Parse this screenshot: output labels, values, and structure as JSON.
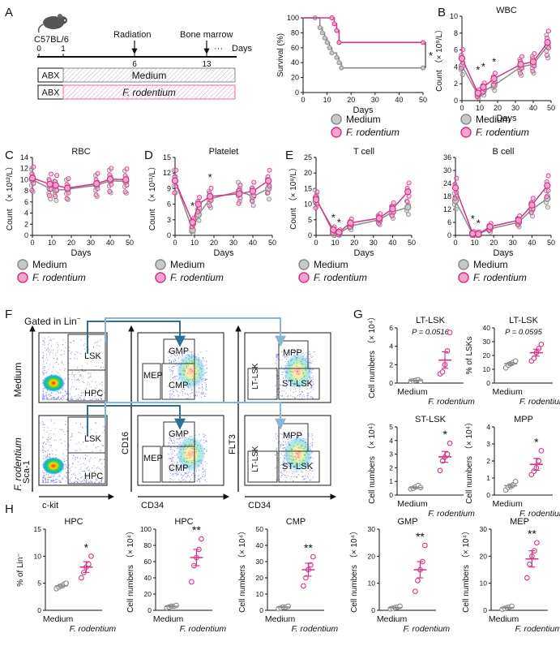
{
  "colors": {
    "medium_fill": "#c9c9c9",
    "medium_stroke": "#8a8a8a",
    "rodentium": "#d6318a",
    "rodentium_fill": "#f0a6cc",
    "arrow_dark": "#2b6f9a",
    "arrow_light": "#8ab6d6",
    "hatch_pink": "#e86aa8"
  },
  "legend": {
    "medium": "Medium",
    "rodentium": "F. rodentium"
  },
  "panel_letters": [
    "A",
    "B",
    "C",
    "D",
    "E",
    "F",
    "G",
    "H"
  ],
  "schematic": {
    "mouse_label": "C57BL/6",
    "event_radiation": "Radiation",
    "event_bone_marrow": "Bone marrow",
    "ticks": [
      "0",
      "1",
      "6",
      "13"
    ],
    "ellipsis": "···",
    "unit": "Days",
    "row1_pre": "ABX",
    "row1_label": "Medium",
    "row2_pre": "ABX",
    "row2_label": "F. rodentium"
  },
  "flow": {
    "gated_label": "Gated in Lin",
    "gated_sup": "−",
    "row_medium": "Medium",
    "row_rodentium": "F. rodentium",
    "plot1_gates": [
      "LSK",
      "HPC"
    ],
    "plot2_gates": [
      "GMP",
      "MEP",
      "CMP"
    ],
    "plot3_gates": [
      "MPP",
      "LT-LSK",
      "ST-LSK"
    ],
    "axis_y": [
      "Sca-1",
      "CD16",
      "FLT3"
    ],
    "axis_x": [
      "c-kit",
      "CD34",
      "CD34"
    ]
  },
  "chart_data": [
    {
      "id": "survival",
      "type": "line",
      "title": "",
      "xlabel": "Days",
      "ylabel": "Survival (%)",
      "xlim": [
        0,
        50
      ],
      "ylim": [
        0,
        100
      ],
      "xticks": [
        0,
        10,
        20,
        30,
        40,
        50
      ],
      "yticks": [
        0,
        20,
        40,
        60,
        80,
        100
      ],
      "annotations": [
        "*"
      ],
      "series": [
        {
          "name": "Medium",
          "x": [
            0,
            5,
            7,
            8,
            9,
            10,
            11,
            12,
            14,
            15,
            16,
            50
          ],
          "y": [
            100,
            100,
            87,
            80,
            73,
            67,
            60,
            53,
            47,
            40,
            33,
            33
          ]
        },
        {
          "name": "F. rodentium",
          "x": [
            0,
            12,
            13,
            14,
            15,
            50
          ],
          "y": [
            100,
            100,
            92,
            83,
            67,
            67
          ]
        }
      ]
    },
    {
      "id": "wbc",
      "type": "line",
      "title": "WBC",
      "xlabel": "Days",
      "ylabel": "Count （× 10⁹/L）",
      "xlim": [
        0,
        50
      ],
      "ylim": [
        0,
        10
      ],
      "xticks": [
        0,
        10,
        20,
        30,
        40,
        50
      ],
      "yticks": [
        0,
        2,
        4,
        6,
        8,
        10
      ],
      "x": [
        0,
        9,
        12,
        18,
        33,
        40,
        48
      ],
      "annotations": [
        "*",
        "*",
        "*"
      ],
      "series": [
        {
          "name": "Medium",
          "values": [
            4.1,
            0.7,
            1.1,
            1.8,
            4.0,
            4.3,
            6.5
          ]
        },
        {
          "name": "F. rodentium",
          "values": [
            5.0,
            0.9,
            1.6,
            2.6,
            4.3,
            4.6,
            6.9
          ]
        }
      ]
    },
    {
      "id": "rbc",
      "type": "line",
      "title": "RBC",
      "xlabel": "Days",
      "ylabel": "Count （× 10¹²/L）",
      "xlim": [
        0,
        50
      ],
      "ylim": [
        0,
        14
      ],
      "xticks": [
        0,
        10,
        20,
        30,
        40,
        50
      ],
      "yticks": [
        0,
        2,
        4,
        6,
        8,
        10,
        12,
        14
      ],
      "x": [
        0,
        9,
        12,
        18,
        33,
        40,
        48
      ],
      "series": [
        {
          "name": "Medium",
          "values": [
            10.0,
            8.4,
            8.1,
            8.3,
            9.0,
            9.8,
            9.7
          ]
        },
        {
          "name": "F. rodentium",
          "values": [
            10.3,
            9.2,
            9.0,
            8.5,
            9.3,
            10.1,
            10.0
          ]
        }
      ]
    },
    {
      "id": "platelet",
      "type": "line",
      "title": "Platelet",
      "xlabel": "Days",
      "ylabel": "Count （× 10¹¹/L）",
      "xlim": [
        0,
        50
      ],
      "ylim": [
        0,
        15
      ],
      "xticks": [
        0,
        10,
        20,
        30,
        40,
        50
      ],
      "yticks": [
        0,
        3,
        6,
        9,
        12,
        15
      ],
      "x": [
        0,
        9,
        12,
        18,
        33,
        40,
        48
      ],
      "annotations": [
        "*",
        "*"
      ],
      "series": [
        {
          "name": "Medium",
          "values": [
            10.5,
            1.0,
            4.0,
            7.0,
            8.5,
            7.5,
            9.0
          ]
        },
        {
          "name": "F. rodentium",
          "values": [
            10.5,
            2.5,
            6.0,
            7.5,
            8.0,
            8.5,
            10.5
          ]
        }
      ]
    },
    {
      "id": "tcell",
      "type": "line",
      "title": "T cell",
      "xlabel": "Days",
      "ylabel": "Count （× 10⁸/L）",
      "xlim": [
        0,
        50
      ],
      "ylim": [
        0,
        25
      ],
      "xticks": [
        0,
        10,
        20,
        30,
        40,
        50
      ],
      "yticks": [
        0,
        5,
        10,
        15,
        20,
        25
      ],
      "x": [
        0,
        9,
        12,
        18,
        33,
        40,
        48
      ],
      "annotations": [
        "*",
        "*"
      ],
      "series": [
        {
          "name": "Medium",
          "values": [
            12.0,
            0.8,
            0.6,
            3.0,
            5.0,
            7.5,
            9.0
          ]
        },
        {
          "name": "F. rodentium",
          "values": [
            11.5,
            1.8,
            1.0,
            4.0,
            5.5,
            8.5,
            14.0
          ]
        }
      ]
    },
    {
      "id": "bcell",
      "type": "line",
      "title": "B cell",
      "xlabel": "Days",
      "ylabel": "",
      "xlim": [
        0,
        50
      ],
      "ylim": [
        0,
        36
      ],
      "xticks": [
        0,
        10,
        20,
        30,
        40,
        50
      ],
      "yticks": [
        0,
        6,
        12,
        18,
        24,
        30,
        36
      ],
      "x": [
        0,
        9,
        12,
        18,
        33,
        40,
        48
      ],
      "annotations": [
        "*",
        "*"
      ],
      "series": [
        {
          "name": "Medium",
          "values": [
            16.0,
            0.5,
            0.5,
            3.0,
            6.0,
            12.0,
            17.0
          ]
        },
        {
          "name": "F. rodentium",
          "values": [
            22.0,
            0.8,
            0.6,
            4.0,
            7.0,
            14.0,
            23.0
          ]
        }
      ]
    },
    {
      "id": "g_ltlsk_n",
      "type": "scatter",
      "title": "LT-LSK",
      "ylabel": "Cell numbers （× 10⁴）",
      "pvalue": "P = 0.0516",
      "ylim": [
        0,
        6
      ],
      "yticks": [
        0,
        2,
        4,
        6
      ],
      "categories": [
        "Medium",
        "F. rodentium"
      ],
      "series": [
        {
          "name": "Medium",
          "values": [
            0.2,
            0.25,
            0.3,
            0.35,
            0.2
          ],
          "mean": 0.27,
          "sem": 0.05
        },
        {
          "name": "F. rodentium",
          "values": [
            1.0,
            1.2,
            2.0,
            3.5,
            5.5
          ],
          "mean": 2.5,
          "sem": 0.9
        }
      ]
    },
    {
      "id": "g_ltlsk_pct",
      "type": "scatter",
      "title": "LT-LSK",
      "ylabel": "% of LSKs",
      "pvalue": "P = 0.0595",
      "ylim": [
        0,
        40
      ],
      "yticks": [
        0,
        10,
        20,
        30,
        40
      ],
      "categories": [
        "Medium",
        "F. rodentium"
      ],
      "series": [
        {
          "name": "Medium",
          "values": [
            11,
            13,
            14,
            15,
            16
          ],
          "mean": 14,
          "sem": 1
        },
        {
          "name": "F. rodentium",
          "values": [
            16,
            18,
            22,
            25,
            28
          ],
          "mean": 22,
          "sem": 2.5
        }
      ]
    },
    {
      "id": "g_stlsk",
      "type": "scatter",
      "title": "ST-LSK",
      "ylabel": "Cell numbers （× 10⁴）",
      "annotations": [
        "*"
      ],
      "ylim": [
        0,
        5
      ],
      "yticks": [
        0,
        1,
        2,
        3,
        4,
        5
      ],
      "categories": [
        "Medium",
        "F. rodentium"
      ],
      "series": [
        {
          "name": "Medium",
          "values": [
            0.45,
            0.5,
            0.6,
            0.7,
            0.55
          ],
          "mean": 0.55,
          "sem": 0.05
        },
        {
          "name": "F. rodentium",
          "values": [
            1.8,
            2.5,
            2.8,
            3.0,
            3.8
          ],
          "mean": 2.8,
          "sem": 0.4
        }
      ]
    },
    {
      "id": "g_mpp",
      "type": "scatter",
      "title": "MPP",
      "ylabel": "Cell numbers （× 10⁴）",
      "annotations": [
        "*"
      ],
      "ylim": [
        0,
        4
      ],
      "yticks": [
        0,
        1,
        2,
        3,
        4
      ],
      "categories": [
        "Medium",
        "F. rodentium"
      ],
      "series": [
        {
          "name": "Medium",
          "values": [
            0.3,
            0.45,
            0.5,
            0.6,
            0.8
          ],
          "mean": 0.55,
          "sem": 0.1
        },
        {
          "name": "F. rodentium",
          "values": [
            1.2,
            1.4,
            1.6,
            2.0,
            2.6
          ],
          "mean": 1.8,
          "sem": 0.35
        }
      ]
    },
    {
      "id": "h_hpc_pct",
      "type": "scatter",
      "title": "HPC",
      "ylabel": "% of Lin⁻",
      "annotations": [
        "*"
      ],
      "ylim": [
        0,
        15
      ],
      "yticks": [
        0,
        5,
        10,
        15
      ],
      "categories": [
        "Medium",
        "F. rodentium"
      ],
      "series": [
        {
          "name": "Medium",
          "values": [
            4.0,
            4.3,
            4.5,
            4.8,
            5.0
          ],
          "mean": 4.5,
          "sem": 0.3
        },
        {
          "name": "F. rodentium",
          "values": [
            6.0,
            7.0,
            8.0,
            8.5,
            10.0
          ],
          "mean": 8.0,
          "sem": 1.0
        }
      ]
    },
    {
      "id": "h_hpc_n",
      "type": "scatter",
      "title": "HPC",
      "ylabel": "Cell numbers （× 10⁴）",
      "annotations": [
        "**"
      ],
      "ylim": [
        0,
        100
      ],
      "yticks": [
        0,
        20,
        40,
        60,
        80,
        100
      ],
      "categories": [
        "Medium",
        "F. rodentium"
      ],
      "series": [
        {
          "name": "Medium",
          "values": [
            3,
            4,
            5,
            5,
            6
          ],
          "mean": 5,
          "sem": 1
        },
        {
          "name": "F. rodentium",
          "values": [
            35,
            55,
            65,
            75,
            88
          ],
          "mean": 65,
          "sem": 10
        }
      ]
    },
    {
      "id": "h_cmp",
      "type": "scatter",
      "title": "CMP",
      "ylabel": "Cell numbers （× 10⁴）",
      "annotations": [
        "**"
      ],
      "ylim": [
        0,
        50
      ],
      "yticks": [
        0,
        10,
        20,
        30,
        40,
        50
      ],
      "categories": [
        "Medium",
        "F. rodentium"
      ],
      "series": [
        {
          "name": "Medium",
          "values": [
            1,
            1.5,
            2,
            2,
            2.5
          ],
          "mean": 2,
          "sem": 0.3
        },
        {
          "name": "F. rodentium",
          "values": [
            15,
            20,
            25,
            28,
            33
          ],
          "mean": 25,
          "sem": 4
        }
      ]
    },
    {
      "id": "h_gmp",
      "type": "scatter",
      "title": "GMP",
      "ylabel": "Cell numbers （× 10⁴）",
      "annotations": [
        "**"
      ],
      "ylim": [
        0,
        30
      ],
      "yticks": [
        0,
        10,
        20,
        30
      ],
      "categories": [
        "Medium",
        "F. rodentium"
      ],
      "series": [
        {
          "name": "Medium",
          "values": [
            0.5,
            0.8,
            1,
            1.2,
            1.5
          ],
          "mean": 1,
          "sem": 0.2
        },
        {
          "name": "F. rodentium",
          "values": [
            7,
            11,
            15,
            18,
            24
          ],
          "mean": 15,
          "sem": 3
        }
      ]
    },
    {
      "id": "h_mep",
      "type": "scatter",
      "title": "MEP",
      "ylabel": "Cell numbers （× 10⁴）",
      "annotations": [
        "**"
      ],
      "ylim": [
        0,
        30
      ],
      "yticks": [
        0,
        10,
        20,
        30
      ],
      "categories": [
        "Medium",
        "F. rodentium"
      ],
      "series": [
        {
          "name": "Medium",
          "values": [
            0.4,
            0.7,
            1,
            1.2,
            1.5
          ],
          "mean": 1,
          "sem": 0.2
        },
        {
          "name": "F. rodentium",
          "values": [
            12,
            17,
            20,
            22,
            25
          ],
          "mean": 19,
          "sem": 3
        }
      ]
    }
  ]
}
